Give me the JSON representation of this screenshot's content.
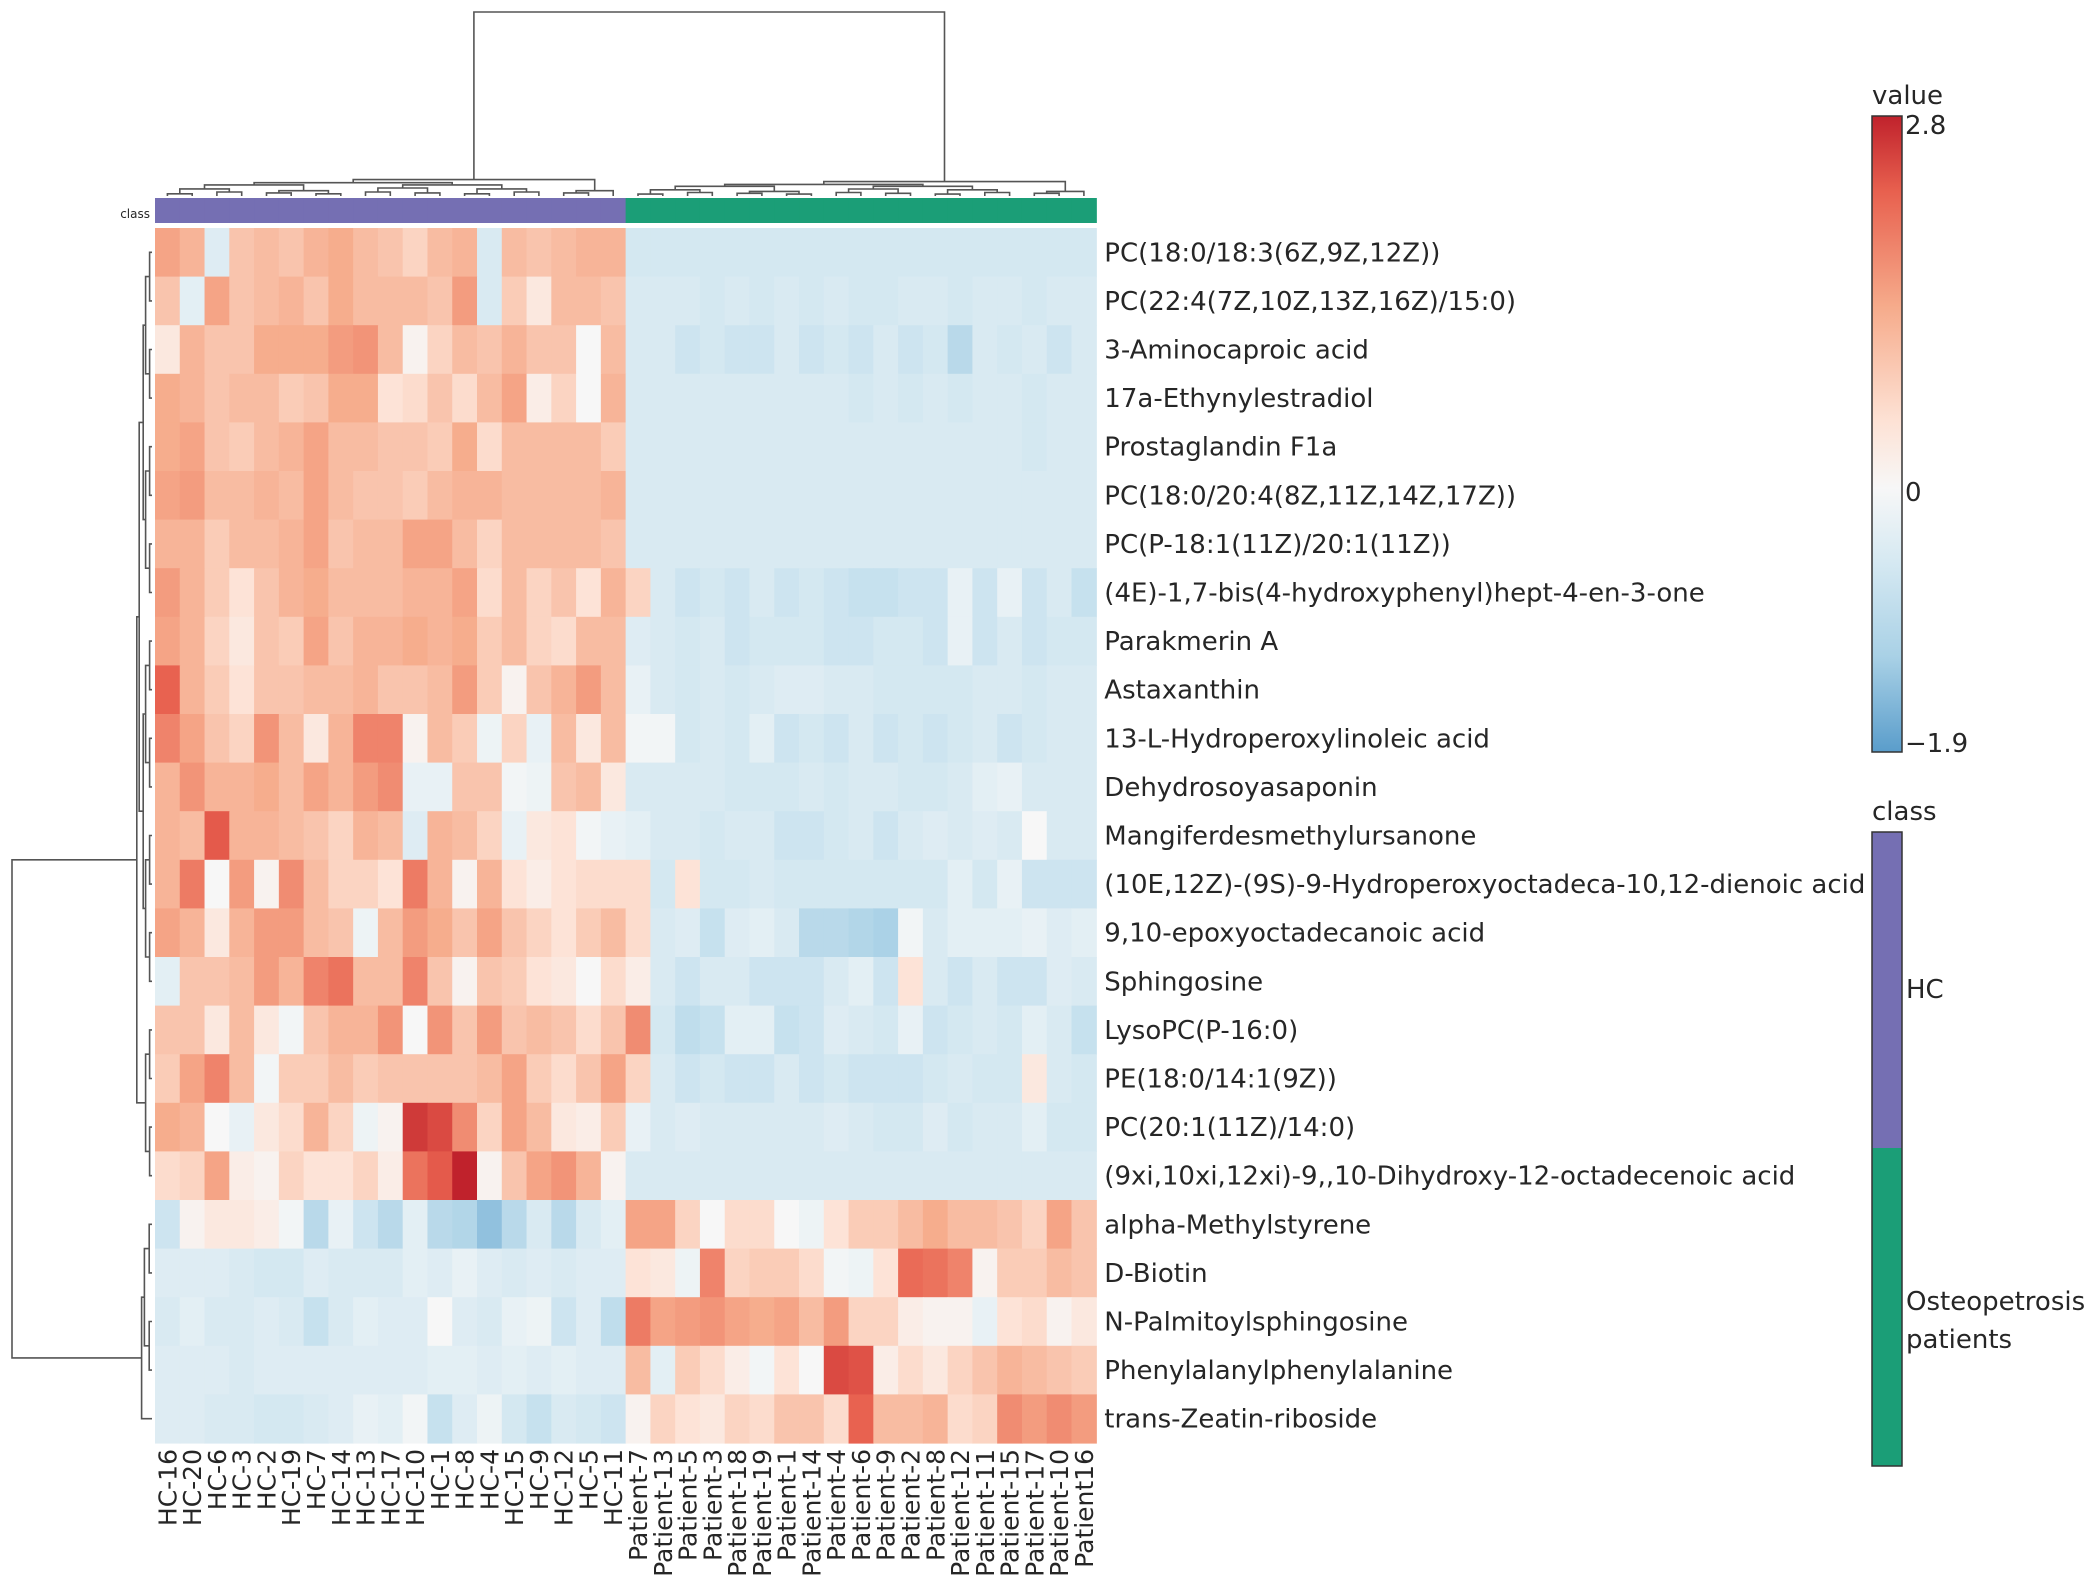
{
  "chart_data": {
    "type": "heatmap",
    "title": "",
    "class_bar_label": "class",
    "rows": [
      "PC(18:0/18:3(6Z,9Z,12Z))",
      "PC(22:4(7Z,10Z,13Z,16Z)/15:0)",
      "3-Aminocaproic acid",
      "17a-Ethynylestradiol",
      "Prostaglandin F1a",
      "PC(18:0/20:4(8Z,11Z,14Z,17Z))",
      "PC(P-18:1(11Z)/20:1(11Z))",
      "(4E)-1,7-bis(4-hydroxyphenyl)hept-4-en-3-one",
      "Parakmerin A",
      "Astaxanthin",
      "13-L-Hydroperoxylinoleic acid",
      "Dehydrosoyasaponin",
      "Mangiferdesmethylursanone",
      "(10E,12Z)-(9S)-9-Hydroperoxyoctadeca-10,12-dienoic acid",
      "9,10-epoxyoctadecanoic acid",
      "Sphingosine",
      "LysoPC(P-16:0)",
      "PE(18:0/14:1(9Z))",
      "PC(20:1(11Z)/14:0)",
      "(9xi,10xi,12xi)-9,,10-Dihydroxy-12-octadecenoic acid",
      "alpha-Methylstyrene",
      "D-Biotin",
      "N-Palmitoylsphingosine",
      "Phenylalanylphenylalanine",
      "trans-Zeatin-riboside"
    ],
    "columns": [
      "HC-16",
      "HC-20",
      "HC-6",
      "HC-3",
      "HC-2",
      "HC-19",
      "HC-7",
      "HC-14",
      "HC-13",
      "HC-17",
      "HC-10",
      "HC-1",
      "HC-8",
      "HC-4",
      "HC-15",
      "HC-9",
      "HC-12",
      "HC-5",
      "HC-11",
      "Patient-7",
      "Patient-13",
      "Patient-5",
      "Patient-3",
      "Patient-18",
      "Patient-19",
      "Patient-1",
      "Patient-14",
      "Patient-4",
      "Patient-6",
      "Patient-9",
      "Patient-2",
      "Patient-8",
      "Patient-12",
      "Patient-11",
      "Patient-15",
      "Patient-17",
      "Patient-10",
      "Patient16"
    ],
    "column_class": [
      "HC",
      "HC",
      "HC",
      "HC",
      "HC",
      "HC",
      "HC",
      "HC",
      "HC",
      "HC",
      "HC",
      "HC",
      "HC",
      "HC",
      "HC",
      "HC",
      "HC",
      "HC",
      "HC",
      "Osteopetrosis patients",
      "Osteopetrosis patients",
      "Osteopetrosis patients",
      "Osteopetrosis patients",
      "Osteopetrosis patients",
      "Osteopetrosis patients",
      "Osteopetrosis patients",
      "Osteopetrosis patients",
      "Osteopetrosis patients",
      "Osteopetrosis patients",
      "Osteopetrosis patients",
      "Osteopetrosis patients",
      "Osteopetrosis patients",
      "Osteopetrosis patients",
      "Osteopetrosis patients",
      "Osteopetrosis patients",
      "Osteopetrosis patients",
      "Osteopetrosis patients",
      "Osteopetrosis patients"
    ],
    "values": [
      [
        1.2,
        1.0,
        -0.5,
        0.8,
        0.9,
        0.8,
        1.0,
        1.1,
        0.9,
        0.8,
        0.6,
        0.9,
        1.0,
        -0.6,
        0.9,
        0.8,
        0.9,
        1.0,
        1.0,
        -0.7,
        -0.7,
        -0.7,
        -0.7,
        -0.7,
        -0.7,
        -0.7,
        -0.7,
        -0.7,
        -0.7,
        -0.7,
        -0.7,
        -0.7,
        -0.7,
        -0.7,
        -0.7,
        -0.7,
        -0.7,
        -0.7
      ],
      [
        0.8,
        -0.4,
        1.2,
        0.8,
        0.9,
        1.0,
        0.8,
        1.1,
        0.9,
        0.9,
        0.9,
        0.8,
        1.3,
        -0.6,
        0.7,
        0.3,
        0.9,
        0.9,
        0.8,
        -0.6,
        -0.6,
        -0.6,
        -0.7,
        -0.6,
        -0.7,
        -0.6,
        -0.7,
        -0.6,
        -0.7,
        -0.7,
        -0.6,
        -0.6,
        -0.7,
        -0.6,
        -0.6,
        -0.7,
        -0.6,
        -0.6
      ],
      [
        0.3,
        1.0,
        0.8,
        0.8,
        1.1,
        1.1,
        1.1,
        1.3,
        1.4,
        0.9,
        0.1,
        0.6,
        0.9,
        0.8,
        1.0,
        0.8,
        0.8,
        0.0,
        0.9,
        -0.6,
        -0.6,
        -0.8,
        -0.7,
        -0.8,
        -0.8,
        -0.6,
        -0.8,
        -0.7,
        -0.8,
        -0.6,
        -0.8,
        -0.7,
        -1.1,
        -0.6,
        -0.7,
        -0.6,
        -0.8,
        -0.6
      ],
      [
        1.1,
        1.0,
        0.8,
        0.9,
        0.9,
        0.7,
        0.8,
        1.1,
        1.1,
        0.4,
        0.5,
        0.8,
        0.5,
        0.9,
        1.2,
        0.2,
        0.6,
        0.0,
        1.0,
        -0.6,
        -0.6,
        -0.6,
        -0.6,
        -0.6,
        -0.6,
        -0.6,
        -0.6,
        -0.6,
        -0.7,
        -0.6,
        -0.7,
        -0.6,
        -0.7,
        -0.6,
        -0.6,
        -0.7,
        -0.6,
        -0.6
      ],
      [
        1.1,
        1.2,
        0.8,
        0.7,
        0.9,
        1.0,
        1.2,
        0.9,
        0.9,
        0.8,
        0.8,
        0.7,
        1.1,
        0.5,
        0.9,
        0.9,
        0.9,
        0.9,
        0.7,
        -0.6,
        -0.6,
        -0.6,
        -0.6,
        -0.6,
        -0.6,
        -0.6,
        -0.6,
        -0.6,
        -0.6,
        -0.6,
        -0.6,
        -0.6,
        -0.6,
        -0.6,
        -0.6,
        -0.7,
        -0.6,
        -0.6
      ],
      [
        1.2,
        1.3,
        0.9,
        0.9,
        1.0,
        0.9,
        1.2,
        0.9,
        0.8,
        0.8,
        0.7,
        0.9,
        1.0,
        1.0,
        0.9,
        0.9,
        0.9,
        0.9,
        1.0,
        -0.6,
        -0.6,
        -0.6,
        -0.6,
        -0.6,
        -0.6,
        -0.6,
        -0.6,
        -0.6,
        -0.6,
        -0.6,
        -0.6,
        -0.6,
        -0.6,
        -0.6,
        -0.6,
        -0.6,
        -0.6,
        -0.6
      ],
      [
        1.0,
        1.0,
        0.7,
        0.9,
        0.9,
        1.0,
        1.2,
        0.8,
        0.9,
        0.9,
        1.2,
        1.2,
        0.9,
        0.6,
        0.9,
        0.9,
        0.9,
        0.9,
        0.8,
        -0.6,
        -0.6,
        -0.6,
        -0.6,
        -0.6,
        -0.6,
        -0.6,
        -0.6,
        -0.6,
        -0.6,
        -0.6,
        -0.6,
        -0.6,
        -0.6,
        -0.6,
        -0.6,
        -0.6,
        -0.6,
        -0.6
      ],
      [
        1.3,
        1.0,
        0.7,
        0.4,
        0.8,
        1.0,
        1.1,
        0.9,
        0.9,
        0.9,
        1.0,
        1.0,
        1.2,
        0.5,
        0.9,
        0.6,
        0.8,
        0.4,
        1.0,
        0.6,
        -0.6,
        -0.8,
        -0.7,
        -0.8,
        -0.6,
        -0.8,
        -0.7,
        -0.8,
        -0.9,
        -0.9,
        -0.8,
        -0.8,
        -0.3,
        -0.8,
        -0.3,
        -0.8,
        -0.6,
        -0.9
      ],
      [
        1.2,
        1.0,
        0.6,
        0.3,
        0.8,
        0.7,
        1.2,
        0.8,
        1.0,
        1.0,
        1.1,
        1.0,
        1.1,
        0.7,
        0.9,
        0.6,
        0.5,
        0.9,
        0.9,
        -0.5,
        -0.6,
        -0.7,
        -0.6,
        -0.8,
        -0.7,
        -0.7,
        -0.7,
        -0.8,
        -0.8,
        -0.7,
        -0.7,
        -0.8,
        -0.3,
        -0.8,
        -0.6,
        -0.8,
        -0.7,
        -0.7
      ],
      [
        2.0,
        1.0,
        0.7,
        0.4,
        0.8,
        0.8,
        0.9,
        0.9,
        1.0,
        0.8,
        0.8,
        0.9,
        1.3,
        0.7,
        0.1,
        0.8,
        1.0,
        1.3,
        0.9,
        -0.3,
        -0.6,
        -0.7,
        -0.6,
        -0.7,
        -0.6,
        -0.5,
        -0.5,
        -0.6,
        -0.6,
        -0.7,
        -0.7,
        -0.7,
        -0.7,
        -0.6,
        -0.6,
        -0.7,
        -0.6,
        -0.6
      ],
      [
        1.6,
        1.2,
        0.8,
        0.6,
        1.4,
        0.9,
        0.3,
        1.0,
        1.6,
        1.6,
        0.1,
        0.9,
        0.7,
        -0.2,
        0.6,
        -0.3,
        0.9,
        0.3,
        0.9,
        -0.1,
        -0.1,
        -0.7,
        -0.6,
        -0.7,
        -0.4,
        -0.8,
        -0.7,
        -0.8,
        -0.6,
        -0.8,
        -0.7,
        -0.8,
        -0.7,
        -0.6,
        -0.8,
        -0.7,
        -0.6,
        -0.6
      ],
      [
        1.0,
        1.4,
        1.0,
        1.0,
        1.1,
        0.9,
        1.2,
        1.0,
        1.3,
        1.5,
        -0.3,
        -0.3,
        0.8,
        0.8,
        -0.1,
        -0.2,
        0.8,
        0.9,
        0.3,
        -0.6,
        -0.6,
        -0.6,
        -0.6,
        -0.7,
        -0.7,
        -0.7,
        -0.6,
        -0.7,
        -0.6,
        -0.6,
        -0.7,
        -0.7,
        -0.6,
        -0.4,
        -0.3,
        -0.6,
        -0.6,
        -0.6
      ],
      [
        1.0,
        0.9,
        2.1,
        1.0,
        1.0,
        0.9,
        0.8,
        0.6,
        1.0,
        0.9,
        -0.5,
        1.0,
        0.9,
        0.6,
        -0.3,
        0.3,
        0.4,
        -0.1,
        -0.3,
        -0.4,
        -0.6,
        -0.6,
        -0.7,
        -0.6,
        -0.6,
        -0.8,
        -0.8,
        -0.7,
        -0.6,
        -0.8,
        -0.6,
        -0.5,
        -0.6,
        -0.5,
        -0.6,
        0.0,
        -0.6,
        -0.6
      ],
      [
        1.0,
        1.7,
        0.0,
        1.3,
        0.1,
        1.5,
        0.9,
        0.6,
        0.6,
        0.4,
        1.7,
        1.0,
        0.1,
        1.0,
        0.4,
        0.2,
        0.4,
        0.5,
        0.5,
        0.5,
        -0.7,
        0.4,
        -0.7,
        -0.7,
        -0.6,
        -0.7,
        -0.7,
        -0.7,
        -0.7,
        -0.7,
        -0.7,
        -0.7,
        -0.4,
        -0.7,
        -0.3,
        -0.8,
        -0.8,
        -0.8
      ],
      [
        1.2,
        1.0,
        0.3,
        1.0,
        1.3,
        1.3,
        0.9,
        0.8,
        -0.2,
        0.9,
        1.3,
        1.1,
        0.8,
        1.2,
        0.8,
        0.6,
        0.4,
        0.7,
        0.9,
        0.5,
        -0.6,
        -0.5,
        -0.9,
        -0.5,
        -0.4,
        -0.6,
        -1.1,
        -1.1,
        -1.2,
        -1.3,
        -0.1,
        -0.6,
        -0.4,
        -0.4,
        -0.4,
        -0.3,
        -0.5,
        -0.4
      ],
      [
        -0.4,
        0.8,
        0.8,
        0.9,
        1.3,
        1.0,
        1.6,
        1.8,
        0.9,
        0.9,
        1.6,
        0.8,
        0.1,
        0.8,
        0.7,
        0.4,
        0.3,
        0.0,
        0.5,
        0.2,
        -0.6,
        -0.8,
        -0.6,
        -0.6,
        -0.8,
        -0.8,
        -0.8,
        -0.6,
        -0.4,
        -0.8,
        0.4,
        -0.6,
        -0.8,
        -0.6,
        -0.8,
        -0.8,
        -0.5,
        -0.6
      ],
      [
        0.8,
        0.8,
        0.3,
        0.9,
        0.3,
        -0.1,
        0.8,
        1.0,
        1.0,
        1.4,
        0.0,
        1.4,
        0.8,
        1.3,
        0.8,
        0.9,
        0.8,
        0.5,
        0.8,
        1.5,
        -0.7,
        -1.0,
        -0.9,
        -0.4,
        -0.4,
        -0.9,
        -0.8,
        -0.5,
        -0.6,
        -0.7,
        -0.3,
        -0.8,
        -0.7,
        -0.6,
        -0.7,
        -0.4,
        -0.6,
        -0.9
      ],
      [
        0.7,
        1.2,
        1.6,
        0.9,
        -0.1,
        0.7,
        0.7,
        0.9,
        0.7,
        0.8,
        0.8,
        0.8,
        0.8,
        0.9,
        1.2,
        0.7,
        0.5,
        0.8,
        1.2,
        0.6,
        -0.6,
        -0.8,
        -0.7,
        -0.8,
        -0.8,
        -0.6,
        -0.8,
        -0.7,
        -0.8,
        -0.8,
        -0.8,
        -0.7,
        -0.6,
        -0.7,
        -0.7,
        0.3,
        -0.6,
        -0.7
      ],
      [
        1.1,
        1.0,
        0.0,
        -0.3,
        0.3,
        0.5,
        1.0,
        0.6,
        -0.2,
        0.1,
        2.5,
        2.3,
        1.5,
        0.6,
        1.2,
        0.9,
        0.3,
        0.2,
        0.7,
        -0.3,
        -0.6,
        -0.5,
        -0.6,
        -0.6,
        -0.6,
        -0.6,
        -0.6,
        -0.5,
        -0.6,
        -0.7,
        -0.7,
        -0.5,
        -0.7,
        -0.6,
        -0.6,
        -0.4,
        -0.7,
        -0.7
      ],
      [
        0.5,
        0.6,
        1.2,
        0.2,
        0.1,
        0.6,
        0.4,
        0.4,
        0.6,
        0.2,
        1.8,
        2.1,
        2.8,
        0.1,
        0.8,
        1.2,
        1.4,
        1.0,
        0.1,
        -0.6,
        -0.6,
        -0.6,
        -0.6,
        -0.6,
        -0.6,
        -0.6,
        -0.6,
        -0.6,
        -0.6,
        -0.6,
        -0.6,
        -0.6,
        -0.6,
        -0.6,
        -0.6,
        -0.6,
        -0.6,
        -0.6
      ],
      [
        -0.8,
        0.1,
        0.3,
        0.3,
        0.2,
        -0.1,
        -1.1,
        -0.3,
        -0.8,
        -1.1,
        -0.4,
        -1.1,
        -1.2,
        -1.5,
        -1.1,
        -0.6,
        -1.1,
        -0.6,
        -0.4,
        1.2,
        1.2,
        0.6,
        0.0,
        0.5,
        0.5,
        0.0,
        -0.2,
        0.4,
        0.7,
        0.7,
        0.9,
        1.1,
        0.9,
        0.9,
        0.8,
        0.6,
        1.2,
        0.8
      ],
      [
        -0.5,
        -0.5,
        -0.5,
        -0.6,
        -0.7,
        -0.7,
        -0.5,
        -0.6,
        -0.6,
        -0.6,
        -0.4,
        -0.5,
        -0.3,
        -0.5,
        -0.6,
        -0.5,
        -0.6,
        -0.5,
        -0.5,
        0.4,
        0.3,
        -0.2,
        1.6,
        0.6,
        0.7,
        0.7,
        0.5,
        -0.1,
        -0.2,
        0.4,
        1.9,
        1.8,
        1.6,
        0.1,
        0.7,
        0.7,
        0.9,
        0.8
      ],
      [
        -0.6,
        -0.4,
        -0.6,
        -0.6,
        -0.5,
        -0.6,
        -0.9,
        -0.6,
        -0.4,
        -0.5,
        -0.5,
        0.0,
        -0.5,
        -0.6,
        -0.3,
        -0.2,
        -0.8,
        -0.5,
        -1.0,
        1.7,
        1.2,
        1.3,
        1.4,
        1.2,
        1.1,
        1.2,
        0.9,
        1.3,
        0.6,
        0.6,
        0.2,
        0.1,
        0.1,
        -0.3,
        0.4,
        0.5,
        0.1,
        0.3
      ],
      [
        -0.5,
        -0.5,
        -0.5,
        -0.6,
        -0.5,
        -0.5,
        -0.5,
        -0.5,
        -0.5,
        -0.5,
        -0.5,
        -0.4,
        -0.4,
        -0.5,
        -0.4,
        -0.5,
        -0.4,
        -0.5,
        -0.5,
        0.9,
        -0.4,
        0.7,
        0.5,
        0.2,
        -0.1,
        0.4,
        0.0,
        2.3,
        2.2,
        0.2,
        0.5,
        0.3,
        0.6,
        0.8,
        1.0,
        0.9,
        0.8,
        0.7
      ],
      [
        -0.5,
        -0.5,
        -0.6,
        -0.6,
        -0.7,
        -0.7,
        -0.6,
        -0.5,
        -0.3,
        -0.4,
        -0.1,
        -0.9,
        -0.5,
        -0.2,
        -0.7,
        -0.9,
        -0.6,
        -0.7,
        -0.8,
        0.1,
        0.6,
        0.4,
        0.3,
        0.6,
        0.5,
        0.8,
        0.8,
        0.5,
        2.0,
        0.9,
        0.9,
        1.0,
        0.5,
        0.6,
        1.5,
        1.3,
        1.5,
        1.3
      ]
    ],
    "colorbar": {
      "title": "value",
      "min": -1.9,
      "max": 2.8,
      "ticks": [
        "2.8",
        "0",
        "−1.9"
      ]
    },
    "class_legend": {
      "title": "class",
      "entries": [
        {
          "label": "HC",
          "color": "#756fb3"
        },
        {
          "label": "Osteopetrosis patients",
          "color": "#1b9e77"
        }
      ]
    }
  }
}
